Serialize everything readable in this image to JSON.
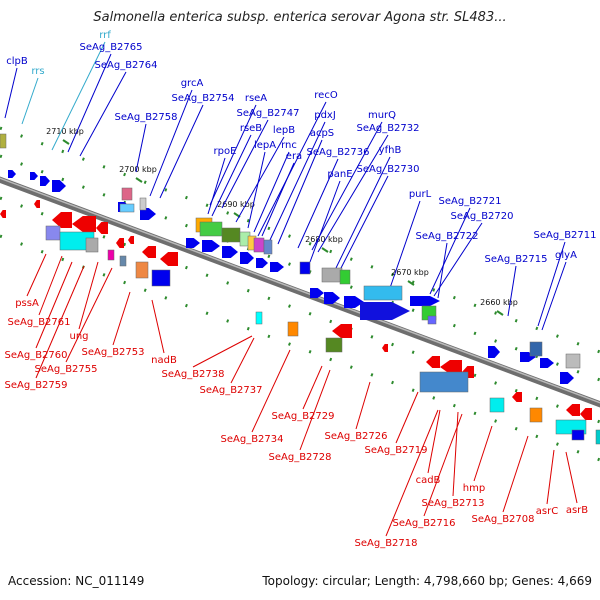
{
  "title": "Salmonella enterica subsp. enterica serovar Agona str. SL483...",
  "footer": {
    "accession": "Accession: NC_011149",
    "summary": "Topology: circular; Length: 4,798,660 bp; Genes: 4,669"
  },
  "colors": {
    "top_gene_label": "#0000cc",
    "rna_label": "#33aacc",
    "bottom_gene_label": "#dd0000",
    "backbone": "#888888",
    "tick": "#2e8b2e"
  },
  "ticks": [
    "2710 kbp",
    "2700 kbp",
    "2690 kbp",
    "2680 kbp",
    "2670 kbp",
    "2660 kbp"
  ],
  "top_labels": [
    "clpB",
    "rrf",
    "rrs",
    "SeAg_B2765",
    "SeAg_B2764",
    "grcA",
    "SeAg_B2754",
    "SeAg_B2758",
    "rseA",
    "SeAg_B2747",
    "recO",
    "pdxJ",
    "rseB",
    "lepB",
    "acpS",
    "murQ",
    "SeAg_B2732",
    "rpoE",
    "lepA",
    "rnc",
    "era",
    "SeAg_B2736",
    "yfhB",
    "panE",
    "SeAg_B2730",
    "purL",
    "SeAg_B2721",
    "SeAg_B2720",
    "SeAg_B2722",
    "SeAg_B2711",
    "glyA",
    "SeAg_B2715"
  ],
  "bottom_labels": [
    "pssA",
    "SeAg_B2761",
    "SeAg_B2760",
    "SeAg_B2759",
    "ung",
    "SeAg_B2755",
    "SeAg_B2753",
    "nadB",
    "SeAg_B2738",
    "SeAg_B2737",
    "SeAg_B2734",
    "SeAg_B2729",
    "SeAg_B2728",
    "SeAg_B2726",
    "SeAg_B2719",
    "cadB",
    "SeAg_B2713",
    "SeAg_B2716",
    "SeAg_B2718",
    "hmp",
    "SeAg_B2708",
    "asrC",
    "asrB"
  ]
}
